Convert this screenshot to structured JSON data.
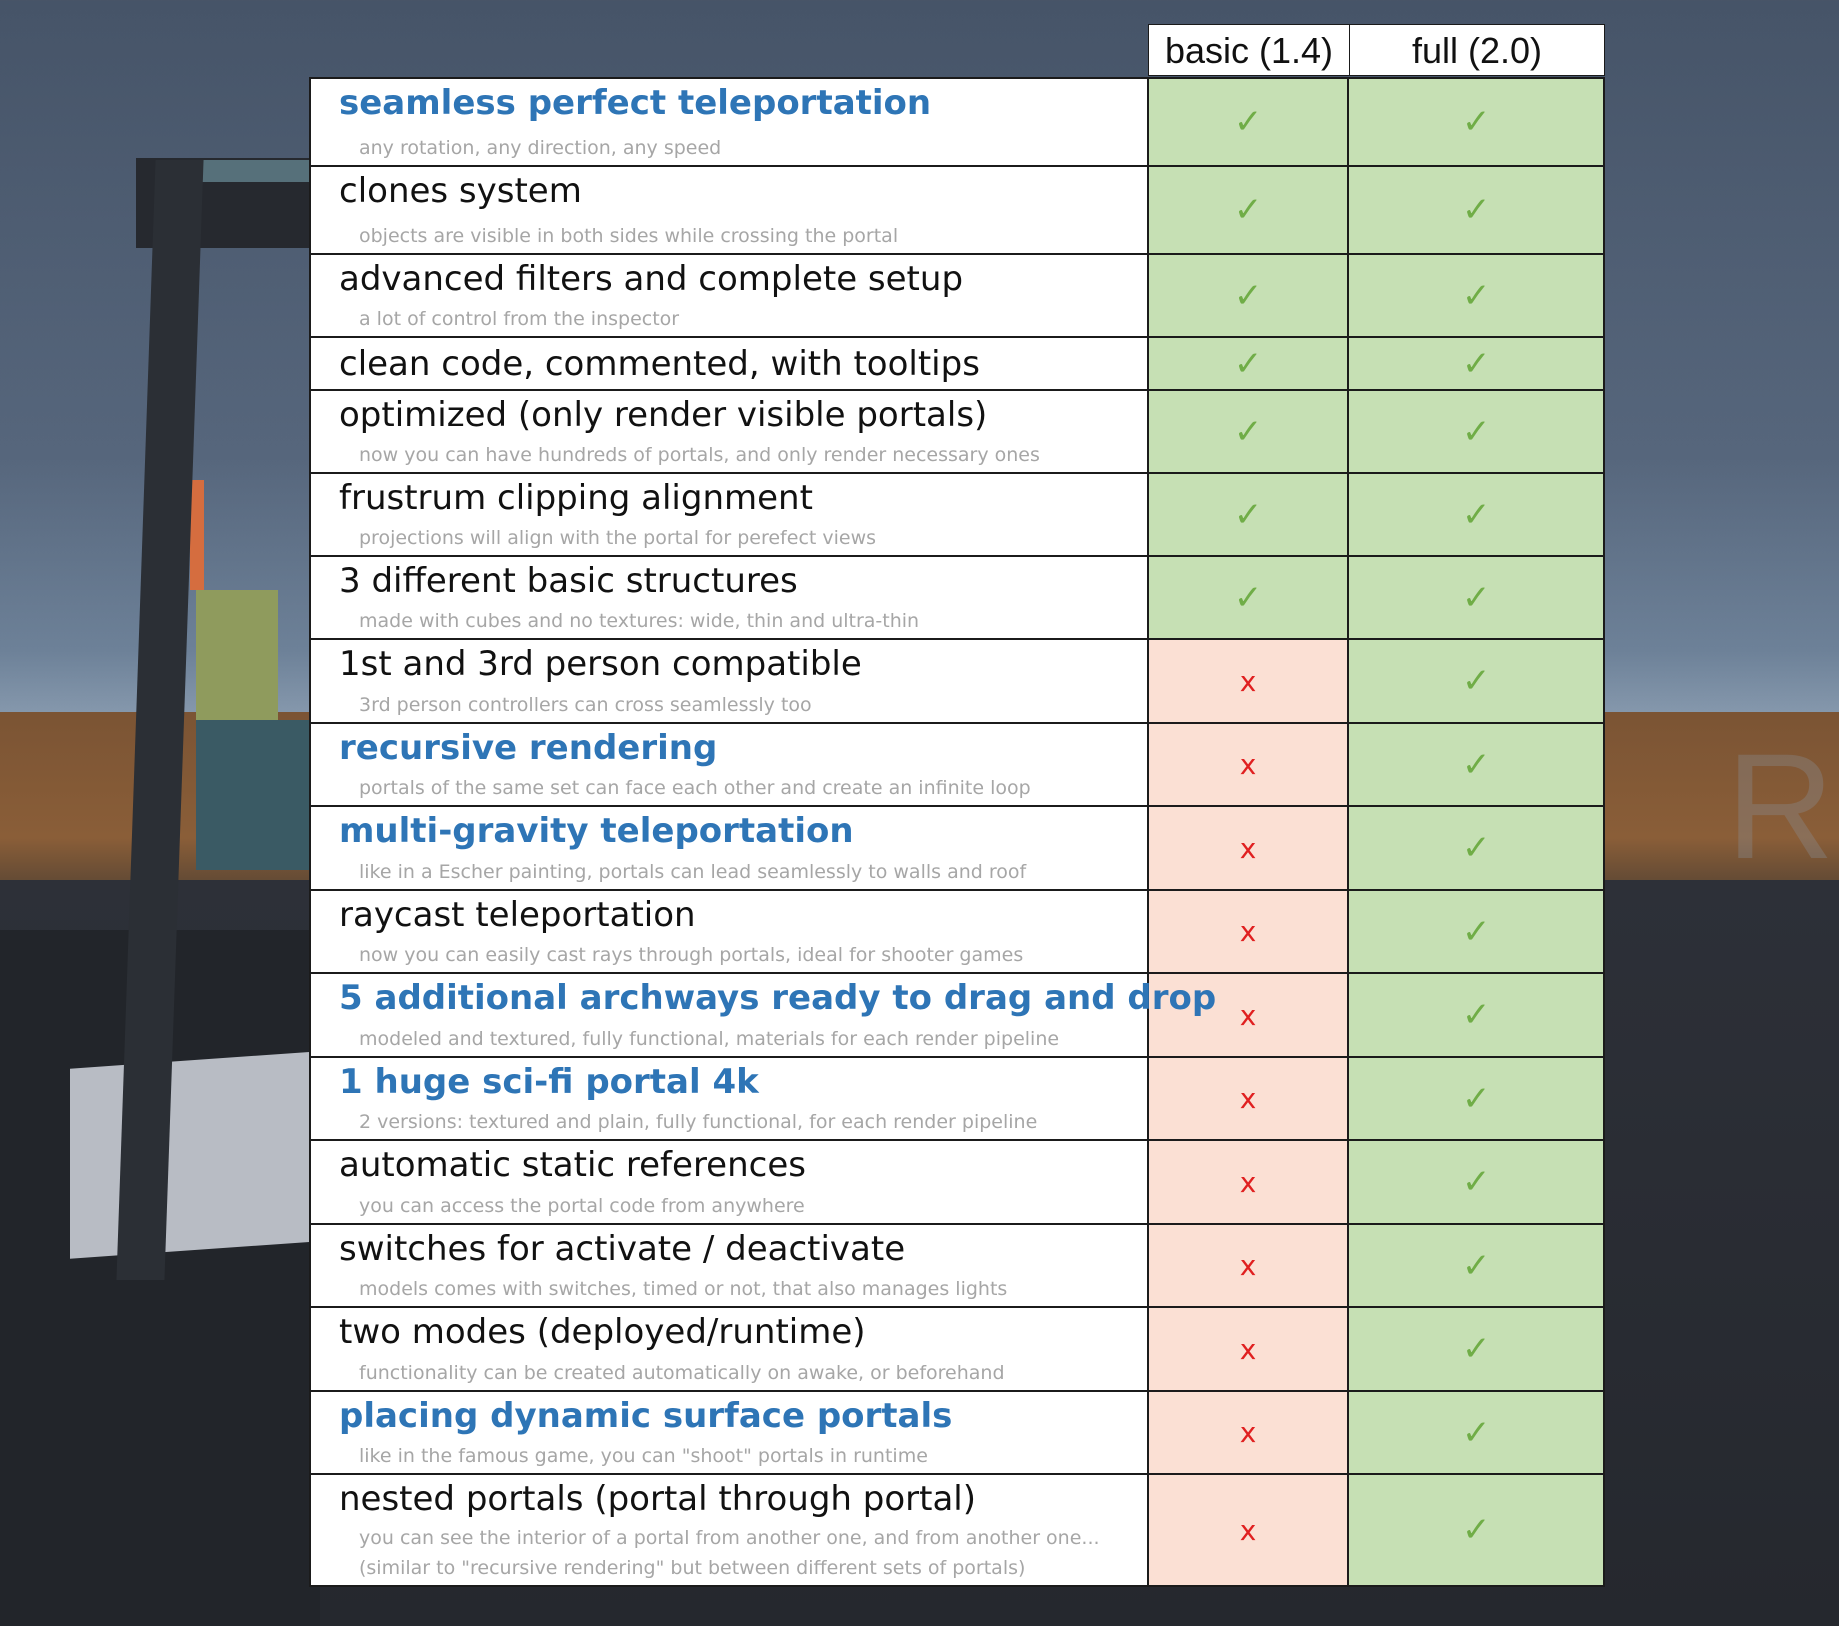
{
  "headers": {
    "basic": "basic (1.4)",
    "full": "full (2.0)"
  },
  "background_text": "Ro",
  "rows": [
    {
      "title": "seamless perfect teleportation",
      "sub": "any rotation, any direction, any speed",
      "highlight": true,
      "basic": "✓",
      "full": "✓"
    },
    {
      "title": "clones system",
      "sub": "objects are visible in both sides while crossing the portal",
      "highlight": false,
      "basic": "✓",
      "full": "✓"
    },
    {
      "title": "advanced filters and complete setup",
      "sub": "a lot of control from the inspector",
      "highlight": false,
      "basic": "✓",
      "full": "✓"
    },
    {
      "title": "clean code, commented, with tooltips",
      "sub": "",
      "highlight": false,
      "basic": "✓",
      "full": "✓"
    },
    {
      "title": "optimized (only render visible portals)",
      "sub": "now you can have hundreds of portals, and only render necessary ones",
      "highlight": false,
      "basic": "✓",
      "full": "✓"
    },
    {
      "title": "frustrum clipping alignment",
      "sub": "projections will align with the portal for perefect views",
      "highlight": false,
      "basic": "✓",
      "full": "✓"
    },
    {
      "title": "3 different basic structures",
      "sub": "made with cubes and no textures: wide, thin and ultra-thin",
      "highlight": false,
      "basic": "✓",
      "full": "✓"
    },
    {
      "title": "1st and 3rd person compatible",
      "sub": "3rd person controllers can cross seamlessly too",
      "highlight": false,
      "basic": "x",
      "full": "✓"
    },
    {
      "title": "recursive rendering",
      "sub": "portals of the same set can face each other and create an infinite loop",
      "highlight": true,
      "basic": "x",
      "full": "✓"
    },
    {
      "title": "multi-gravity teleportation",
      "sub": "like in a Escher painting, portals can lead seamlessly to walls and roof",
      "highlight": true,
      "basic": "x",
      "full": "✓"
    },
    {
      "title": "raycast teleportation",
      "sub": "now you can easily cast rays through portals, ideal for shooter games",
      "highlight": false,
      "basic": "x",
      "full": "✓"
    },
    {
      "title": "5 additional archways ready to drag and drop",
      "sub": "modeled and textured, fully functional, materials for each render pipeline",
      "highlight": true,
      "basic": "x",
      "full": "✓"
    },
    {
      "title": "1 huge sci-fi portal 4k",
      "sub": "2 versions: textured and plain, fully functional, for each render pipeline",
      "highlight": true,
      "basic": "x",
      "full": "✓"
    },
    {
      "title": "automatic static references",
      "sub": "you can access the portal code from anywhere",
      "highlight": false,
      "basic": "x",
      "full": "✓"
    },
    {
      "title": "switches for activate / deactivate",
      "sub": "models comes with switches, timed or not, that also manages lights",
      "highlight": false,
      "basic": "x",
      "full": "✓"
    },
    {
      "title": "two modes (deployed/runtime)",
      "sub": "functionality can be created automatically on awake, or beforehand",
      "highlight": false,
      "basic": "x",
      "full": "✓"
    },
    {
      "title": "placing dynamic surface portals",
      "sub": "like in the famous game, you can \"shoot\" portals in runtime",
      "highlight": true,
      "basic": "x",
      "full": "✓"
    },
    {
      "title": "nested portals (portal through portal)",
      "sub": "you can see the interior of a portal from another one, and from another one...",
      "sub2": "(similar to \"recursive rendering\" but between different sets of portals)",
      "highlight": false,
      "basic": "x",
      "full": "✓"
    }
  ]
}
